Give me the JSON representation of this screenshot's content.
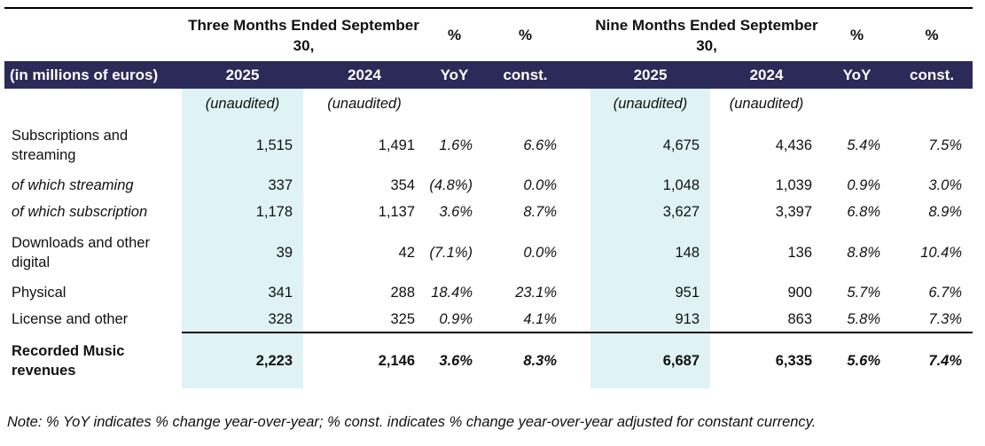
{
  "table": {
    "corner_label": "(in millions of euros)",
    "groups": {
      "three_months": {
        "title": "Three Months Ended September 30,",
        "pct_yoy": "%",
        "pct_const": "%"
      },
      "nine_months": {
        "title": "Nine Months Ended September 30,",
        "pct_yoy": "%",
        "pct_const": "%"
      }
    },
    "columns": [
      "2025",
      "2024",
      "YoY",
      "const."
    ],
    "unaudited_label": "(unaudited)",
    "rows": [
      {
        "label": "Subscriptions and streaming",
        "three": [
          "1,515",
          "1,491",
          "1.6%",
          "6.6%"
        ],
        "nine": [
          "4,675",
          "4,436",
          "5.4%",
          "7.5%"
        ]
      },
      {
        "label": "of which streaming",
        "three": [
          "337",
          "354",
          "(4.8%)",
          "0.0%"
        ],
        "nine": [
          "1,048",
          "1,039",
          "0.9%",
          "3.0%"
        ]
      },
      {
        "label": "of which subscription",
        "three": [
          "1,178",
          "1,137",
          "3.6%",
          "8.7%"
        ],
        "nine": [
          "3,627",
          "3,397",
          "6.8%",
          "8.9%"
        ]
      },
      {
        "label": "Downloads and other digital",
        "three": [
          "39",
          "42",
          "(7.1%)",
          "0.0%"
        ],
        "nine": [
          "148",
          "136",
          "8.8%",
          "10.4%"
        ]
      },
      {
        "label": "Physical",
        "three": [
          "341",
          "288",
          "18.4%",
          "23.1%"
        ],
        "nine": [
          "951",
          "900",
          "5.7%",
          "6.7%"
        ]
      },
      {
        "label": "License and other",
        "three": [
          "328",
          "325",
          "0.9%",
          "4.1%"
        ],
        "nine": [
          "913",
          "863",
          "5.8%",
          "7.3%"
        ]
      },
      {
        "label": "Recorded Music revenues",
        "three": [
          "2,223",
          "2,146",
          "3.6%",
          "8.3%"
        ],
        "nine": [
          "6,687",
          "6,335",
          "5.6%",
          "7.4%"
        ]
      }
    ],
    "note": "Note: % YoY indicates % change year-over-year; % const. indicates % change year-over-year adjusted for constant currency."
  },
  "colors": {
    "header_bg": "#2b2a58",
    "highlight_bg": "#dff2f6"
  }
}
